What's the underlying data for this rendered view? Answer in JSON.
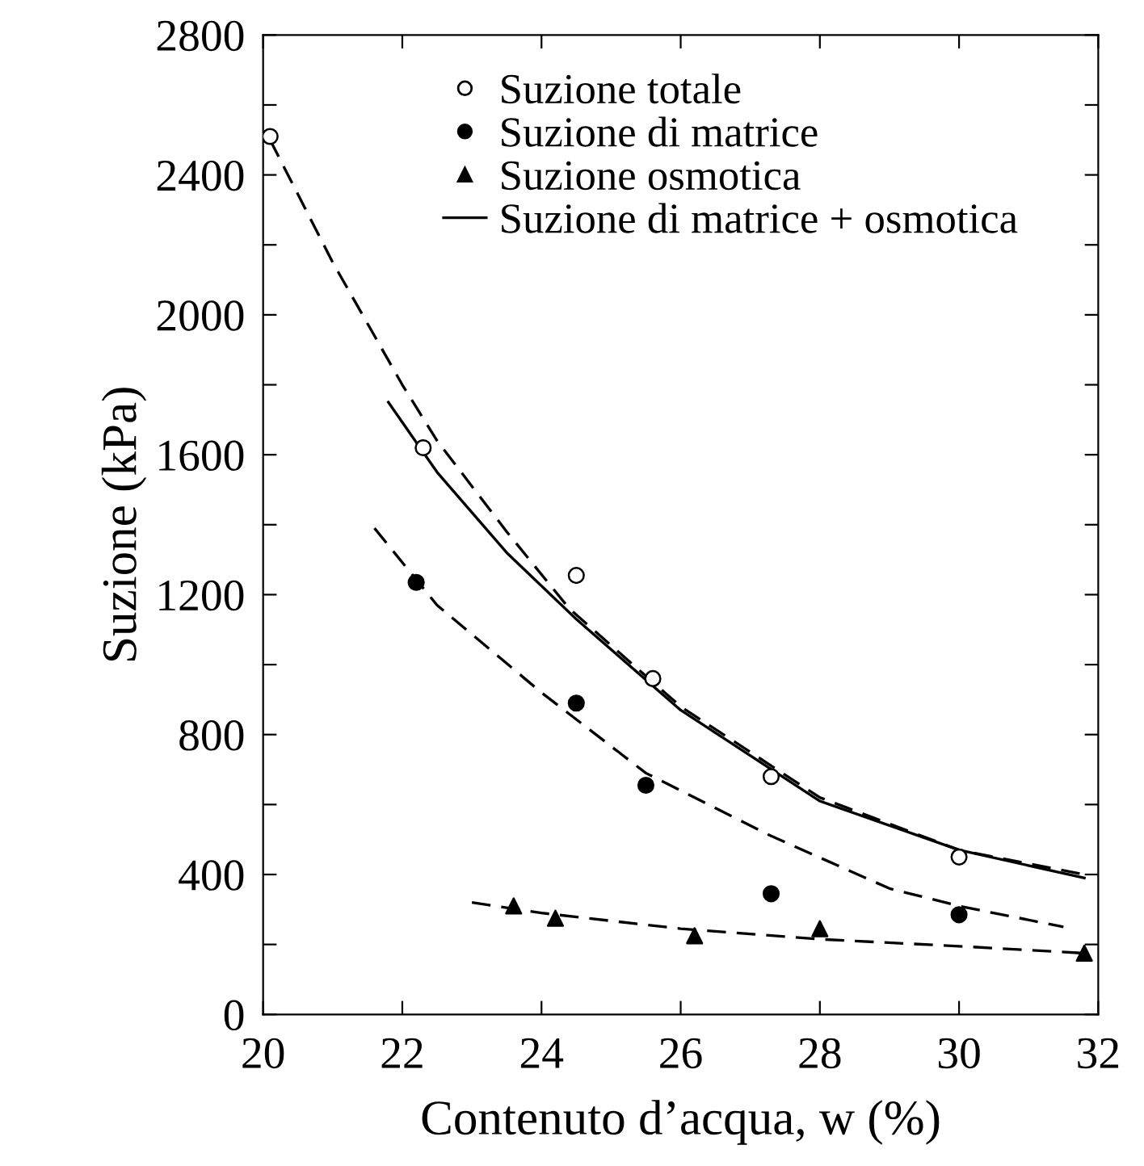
{
  "chart_data": {
    "type": "scatter",
    "xlabel": "Contenuto d’acqua, w (%)",
    "ylabel": "Suzione (kPa)",
    "xlim": [
      20,
      32
    ],
    "ylim": [
      0,
      2800
    ],
    "xticks": [
      20,
      22,
      24,
      26,
      28,
      30,
      32
    ],
    "yticks": [
      0,
      {
        "value": 200,
        "label": null
      },
      400,
      {
        "value": 600,
        "label": null
      },
      800,
      {
        "value": 1000,
        "label": null
      },
      1200,
      {
        "value": 1400,
        "label": null
      },
      1600,
      {
        "value": 1800,
        "label": null
      },
      2000,
      {
        "value": 2200,
        "label": null
      },
      2400,
      {
        "value": 2600,
        "label": null
      },
      2800
    ],
    "grid": false,
    "legend": "top",
    "series": [
      {
        "name": "Suzione totale",
        "marker": "circle",
        "color": "#ffffff",
        "x": [
          20.1,
          22.3,
          24.5,
          25.6,
          27.3,
          30.0
        ],
        "values": [
          2510,
          1620,
          1255,
          960,
          680,
          450
        ]
      },
      {
        "name": "Suzione di matrice",
        "marker": "circle",
        "color": "#000000",
        "x": [
          22.2,
          24.5,
          25.5,
          27.3,
          30.0
        ],
        "values": [
          1235,
          890,
          655,
          345,
          285
        ]
      },
      {
        "name": "Suzione osmotica",
        "marker": "triangle",
        "color": "#000000",
        "x": [
          23.6,
          24.2,
          26.2,
          28.0,
          31.8
        ],
        "values": [
          310,
          275,
          225,
          245,
          175
        ]
      },
      {
        "name": "Suzione di matrice + osmotica",
        "type": "line",
        "line_style": "solid",
        "color": "#000000",
        "x": [
          21.8,
          22.5,
          23.5,
          24.5,
          26.0,
          28.0,
          30.0,
          31.8
        ],
        "values": [
          1750,
          1550,
          1320,
          1130,
          870,
          610,
          470,
          390
        ]
      },
      {
        "type": "line",
        "line_style": "dashed",
        "color": "#000000",
        "x": [
          20.1,
          21.0,
          22.0,
          22.5,
          23.5,
          24.4,
          26.0,
          28.0,
          30.0,
          31.8
        ],
        "values": [
          2500,
          2150,
          1800,
          1640,
          1380,
          1160,
          880,
          620,
          470,
          400
        ]
      },
      {
        "type": "line",
        "line_style": "dashed",
        "color": "#000000",
        "x": [
          21.6,
          22.5,
          24.0,
          25.5,
          27.3,
          29.0,
          30.0,
          31.5
        ],
        "values": [
          1390,
          1170,
          920,
          690,
          510,
          360,
          310,
          250
        ]
      },
      {
        "type": "line",
        "line_style": "dashed",
        "color": "#000000",
        "x": [
          23.0,
          24.0,
          26.0,
          28.0,
          30.0,
          31.8
        ],
        "values": [
          320,
          290,
          245,
          215,
          195,
          175
        ]
      }
    ]
  }
}
